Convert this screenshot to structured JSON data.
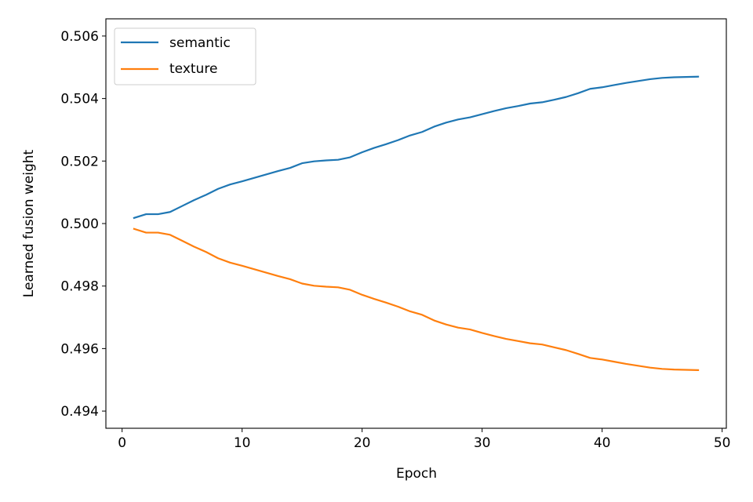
{
  "chart_data": {
    "type": "line",
    "title": "",
    "xlabel": "Epoch",
    "ylabel": "Learned fusion weight",
    "xlim": [
      -1.35,
      50.35
    ],
    "ylim": [
      0.49345,
      0.50655
    ],
    "xticks": [
      0,
      10,
      20,
      30,
      40,
      50
    ],
    "xtick_labels": [
      "0",
      "10",
      "20",
      "30",
      "40",
      "50"
    ],
    "yticks": [
      0.494,
      0.496,
      0.498,
      0.5,
      0.502,
      0.504,
      0.506
    ],
    "ytick_labels": [
      "0.494",
      "0.496",
      "0.498",
      "0.500",
      "0.502",
      "0.504",
      "0.506"
    ],
    "grid": false,
    "legend_position": "upper left",
    "x": [
      1,
      2,
      3,
      4,
      5,
      6,
      7,
      8,
      9,
      10,
      11,
      12,
      13,
      14,
      15,
      16,
      17,
      18,
      19,
      20,
      21,
      22,
      23,
      24,
      25,
      26,
      27,
      28,
      29,
      30,
      31,
      32,
      33,
      34,
      35,
      36,
      37,
      38,
      39,
      40,
      41,
      42,
      43,
      44,
      45,
      46,
      47,
      48
    ],
    "series": [
      {
        "name": "semantic",
        "color": "#1f77b4",
        "values": [
          0.50018,
          0.5003,
          0.5003,
          0.50037,
          0.50056,
          0.50075,
          0.50092,
          0.50111,
          0.50125,
          0.50135,
          0.50146,
          0.50157,
          0.50168,
          0.50178,
          0.50193,
          0.50199,
          0.50202,
          0.50204,
          0.50212,
          0.50228,
          0.50242,
          0.50254,
          0.50267,
          0.50282,
          0.50293,
          0.5031,
          0.50323,
          0.50333,
          0.5034,
          0.5035,
          0.5036,
          0.50369,
          0.50376,
          0.50384,
          0.50388,
          0.50396,
          0.50405,
          0.50417,
          0.50431,
          0.50436,
          0.50443,
          0.5045,
          0.50456,
          0.50462,
          0.50466,
          0.50468,
          0.50469,
          0.5047
        ]
      },
      {
        "name": "texture",
        "color": "#ff7f0e",
        "values": [
          0.49983,
          0.49971,
          0.49971,
          0.49964,
          0.49945,
          0.49926,
          0.49909,
          0.49889,
          0.49875,
          0.49865,
          0.49854,
          0.49843,
          0.49832,
          0.49822,
          0.49808,
          0.49801,
          0.49798,
          0.49796,
          0.49788,
          0.49772,
          0.49759,
          0.49747,
          0.49734,
          0.49719,
          0.49708,
          0.4969,
          0.49677,
          0.49667,
          0.49661,
          0.4965,
          0.4964,
          0.49631,
          0.49624,
          0.49617,
          0.49613,
          0.49604,
          0.49595,
          0.49583,
          0.4957,
          0.49565,
          0.49558,
          0.49551,
          0.49545,
          0.49539,
          0.49535,
          0.49533,
          0.49532,
          0.49531
        ]
      }
    ]
  }
}
